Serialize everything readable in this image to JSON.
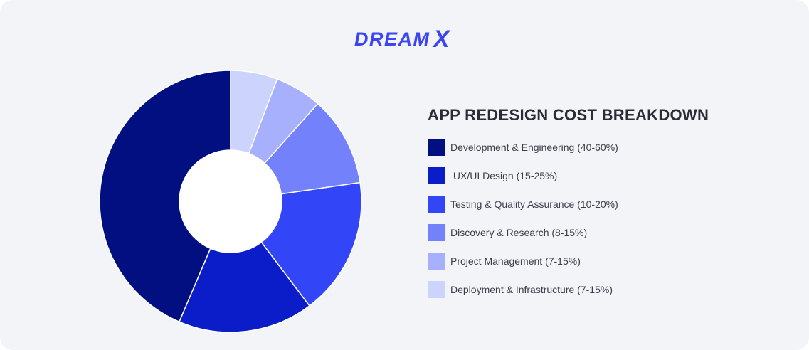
{
  "brand": {
    "name": "DREAMX",
    "wordmark_prefix": "DREAM",
    "wordmark_suffix": "X",
    "color": "#3b45f2"
  },
  "chart_data": {
    "type": "pie",
    "variant": "donut",
    "title": "APP REDESIGN COST BREAKDOWN",
    "start_angle_deg": 270,
    "direction": "counterclockwise",
    "legend_position": "right",
    "slices": [
      {
        "label": "Development & Engineering (40-60%)",
        "value": 43.6,
        "color": "#020f80"
      },
      {
        "label": " UX/UI Design (15-25%)",
        "value": 16.7,
        "color": "#0a1dc9"
      },
      {
        "label": "Testing & Quality Assurance (10-20%)",
        "value": 17.0,
        "color": "#3346f7"
      },
      {
        "label": "Discovery & Research (8-15%)",
        "value": 11.1,
        "color": "#7381fa"
      },
      {
        "label": "Project Management (7-15%)",
        "value": 5.8,
        "color": "#a7b0fc"
      },
      {
        "label": "Deployment & Infrastructure (7-15%)",
        "value": 5.8,
        "color": "#ccd3fd"
      }
    ]
  }
}
